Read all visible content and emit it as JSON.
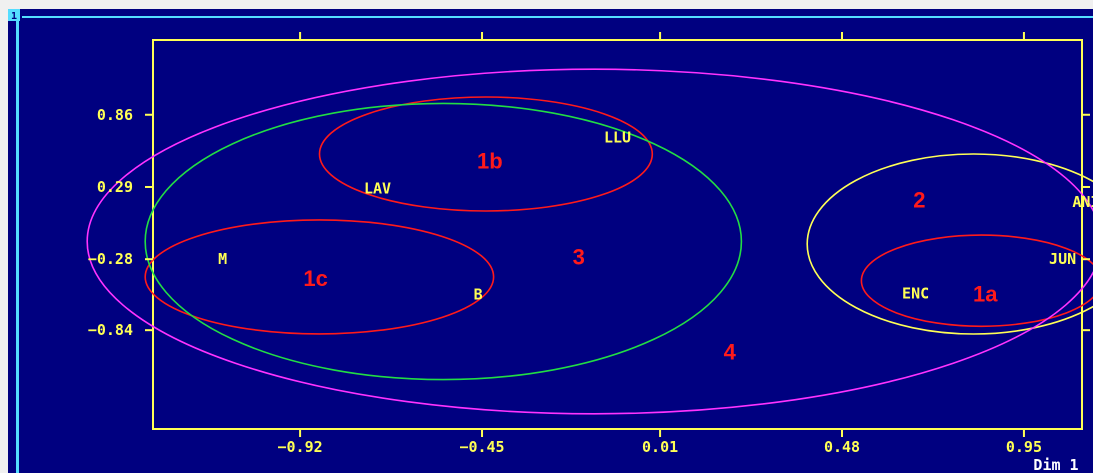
{
  "window": {
    "title_marker": "1"
  },
  "chart_data": {
    "type": "scatter",
    "xlabel": "Dim 1",
    "ylabel": "",
    "xlim": [
      -1.3,
      1.1
    ],
    "ylim": [
      -1.62,
      1.45
    ],
    "x_ticks": [
      -0.92,
      -0.45,
      0.01,
      0.48,
      0.95
    ],
    "x_tick_labels": [
      "−0.92",
      "−0.45",
      "0.01",
      "0.48",
      "0.95"
    ],
    "y_ticks": [
      0.86,
      0.29,
      -0.28,
      -0.84
    ],
    "y_tick_labels": [
      "0.86",
      "0.29",
      "−0.28",
      "−0.84"
    ],
    "grid": false,
    "colors": {
      "background": "#000080",
      "axes": "#ffff55",
      "text": "#ffff55",
      "cluster_1": "#ff1a1a",
      "cluster_2": "#ffff55",
      "cluster_3": "#22dd44",
      "cluster_4": "#ff33ff",
      "cluster_label": "#ff1a1a",
      "window_border": "#55ddff"
    },
    "points": [
      {
        "label": "LLU",
        "x": -0.1,
        "y": 0.68
      },
      {
        "label": "LAV",
        "x": -0.72,
        "y": 0.28
      },
      {
        "label": "M",
        "x": -1.12,
        "y": -0.28
      },
      {
        "label": "B",
        "x": -0.46,
        "y": -0.56
      },
      {
        "label": "ANI",
        "x": 1.11,
        "y": 0.17
      },
      {
        "label": "JUN",
        "x": 1.05,
        "y": -0.28
      },
      {
        "label": "ENC",
        "x": 0.67,
        "y": -0.55
      }
    ],
    "clusters": [
      {
        "label": "1a",
        "color_key": "cluster_1",
        "cx": 0.84,
        "cy": -0.45,
        "rx": 0.31,
        "ry": 0.36,
        "label_x": 0.85,
        "label_y": -0.55
      },
      {
        "label": "1b",
        "color_key": "cluster_1",
        "cx": -0.44,
        "cy": 0.55,
        "rx": 0.43,
        "ry": 0.45,
        "label_x": -0.43,
        "label_y": 0.5
      },
      {
        "label": "1c",
        "color_key": "cluster_1",
        "cx": -0.87,
        "cy": -0.42,
        "rx": 0.45,
        "ry": 0.45,
        "label_x": -0.88,
        "label_y": -0.43
      },
      {
        "label": "2",
        "color_key": "cluster_2",
        "cx": 0.82,
        "cy": -0.16,
        "rx": 0.43,
        "ry": 0.71,
        "label_x": 0.68,
        "label_y": 0.19
      },
      {
        "label": "3",
        "color_key": "cluster_3",
        "cx": -0.55,
        "cy": -0.14,
        "rx": 0.77,
        "ry": 1.09,
        "label_x": -0.2,
        "label_y": -0.26
      },
      {
        "label": "4",
        "color_key": "cluster_4",
        "cx": -0.16,
        "cy": -0.14,
        "rx": 1.31,
        "ry": 1.36,
        "label_x": 0.19,
        "label_y": -1.01
      }
    ]
  }
}
